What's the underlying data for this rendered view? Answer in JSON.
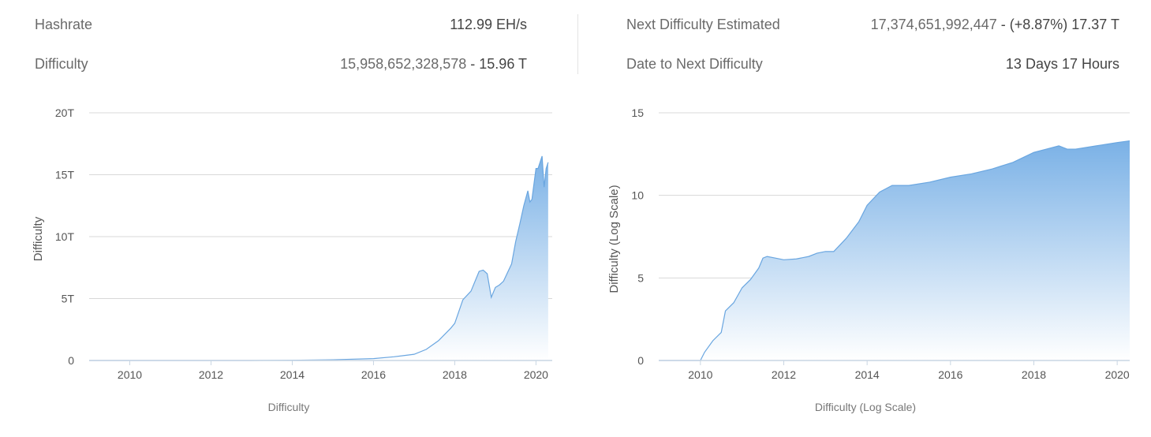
{
  "stats": {
    "hashrate": {
      "label": "Hashrate",
      "value": "112.99 EH/s"
    },
    "difficulty": {
      "label": "Difficulty",
      "value_full": "15,958,652,328,578",
      "separator": " - ",
      "value_short": "15.96 T"
    },
    "next_difficulty": {
      "label": "Next Difficulty Estimated",
      "value_full": "17,374,651,992,447",
      "separator": " - ",
      "value_change": "(+8.87%) 17.37 T"
    },
    "date_to_next": {
      "label": "Date to Next Difficulty",
      "value": "13 Days 17 Hours"
    }
  },
  "colors": {
    "area_top": "#7ab1e6",
    "area_bottom": "#ffffff",
    "line": "#6aa6e0",
    "grid": "#d8d8d8",
    "axis": "#c9d6e3",
    "tick_text": "#555555",
    "axis_title": "#777777"
  },
  "chart_data": [
    {
      "type": "area",
      "ylabel": "Difficulty",
      "xlabel": "Difficulty",
      "ylim": [
        0,
        20
      ],
      "y_ticks": [
        0,
        5,
        10,
        15,
        20
      ],
      "y_tick_labels": [
        "0",
        "5T",
        "10T",
        "15T",
        "20T"
      ],
      "xlim": [
        2009.0,
        2020.4
      ],
      "x_ticks": [
        2010,
        2012,
        2014,
        2016,
        2018,
        2020
      ],
      "x_tick_labels": [
        "2010",
        "2012",
        "2014",
        "2016",
        "2018",
        "2020"
      ],
      "grid": true,
      "series": [
        {
          "x": [
            2009.0,
            2013.0,
            2014.0,
            2015.0,
            2016.0,
            2016.5,
            2017.0,
            2017.3,
            2017.6,
            2017.9,
            2018.0,
            2018.2,
            2018.4,
            2018.6,
            2018.7,
            2018.8,
            2018.9,
            2019.0,
            2019.1,
            2019.2,
            2019.4,
            2019.5,
            2019.6,
            2019.7,
            2019.8,
            2019.85,
            2019.9,
            2020.0,
            2020.05,
            2020.15,
            2020.2,
            2020.25,
            2020.3
          ],
          "y": [
            0,
            0.0,
            0.02,
            0.06,
            0.15,
            0.3,
            0.5,
            0.9,
            1.6,
            2.6,
            3.0,
            4.9,
            5.6,
            7.2,
            7.3,
            7.0,
            5.1,
            5.9,
            6.1,
            6.4,
            7.8,
            9.6,
            11.0,
            12.5,
            13.7,
            12.8,
            13.0,
            15.5,
            15.5,
            16.5,
            14.0,
            15.5,
            16.0
          ]
        }
      ]
    },
    {
      "type": "area",
      "ylabel": "Difficulty (Log Scale)",
      "xlabel": "Difficulty (Log Scale)",
      "ylim": [
        0,
        15
      ],
      "y_ticks": [
        0,
        5,
        10,
        15
      ],
      "y_tick_labels": [
        "0",
        "5",
        "10",
        "15"
      ],
      "xlim": [
        2009.0,
        2020.3
      ],
      "x_ticks": [
        2010,
        2012,
        2014,
        2016,
        2018,
        2020
      ],
      "x_tick_labels": [
        "2010",
        "2012",
        "2014",
        "2016",
        "2018",
        "2020"
      ],
      "grid": true,
      "series": [
        {
          "x": [
            2009.0,
            2010.0,
            2010.1,
            2010.3,
            2010.5,
            2010.6,
            2010.8,
            2011.0,
            2011.2,
            2011.4,
            2011.5,
            2011.6,
            2011.8,
            2012.0,
            2012.3,
            2012.6,
            2012.8,
            2013.0,
            2013.2,
            2013.5,
            2013.8,
            2014.0,
            2014.3,
            2014.6,
            2015.0,
            2015.5,
            2016.0,
            2016.5,
            2017.0,
            2017.5,
            2018.0,
            2018.3,
            2018.6,
            2018.8,
            2019.0,
            2019.5,
            2020.0,
            2020.3
          ],
          "y": [
            0,
            0,
            0.5,
            1.2,
            1.7,
            3.0,
            3.5,
            4.4,
            4.9,
            5.6,
            6.2,
            6.3,
            6.2,
            6.1,
            6.15,
            6.3,
            6.5,
            6.6,
            6.6,
            7.4,
            8.4,
            9.4,
            10.2,
            10.6,
            10.6,
            10.8,
            11.1,
            11.3,
            11.6,
            12.0,
            12.6,
            12.8,
            13.0,
            12.8,
            12.8,
            13.0,
            13.2,
            13.3
          ]
        }
      ]
    }
  ]
}
